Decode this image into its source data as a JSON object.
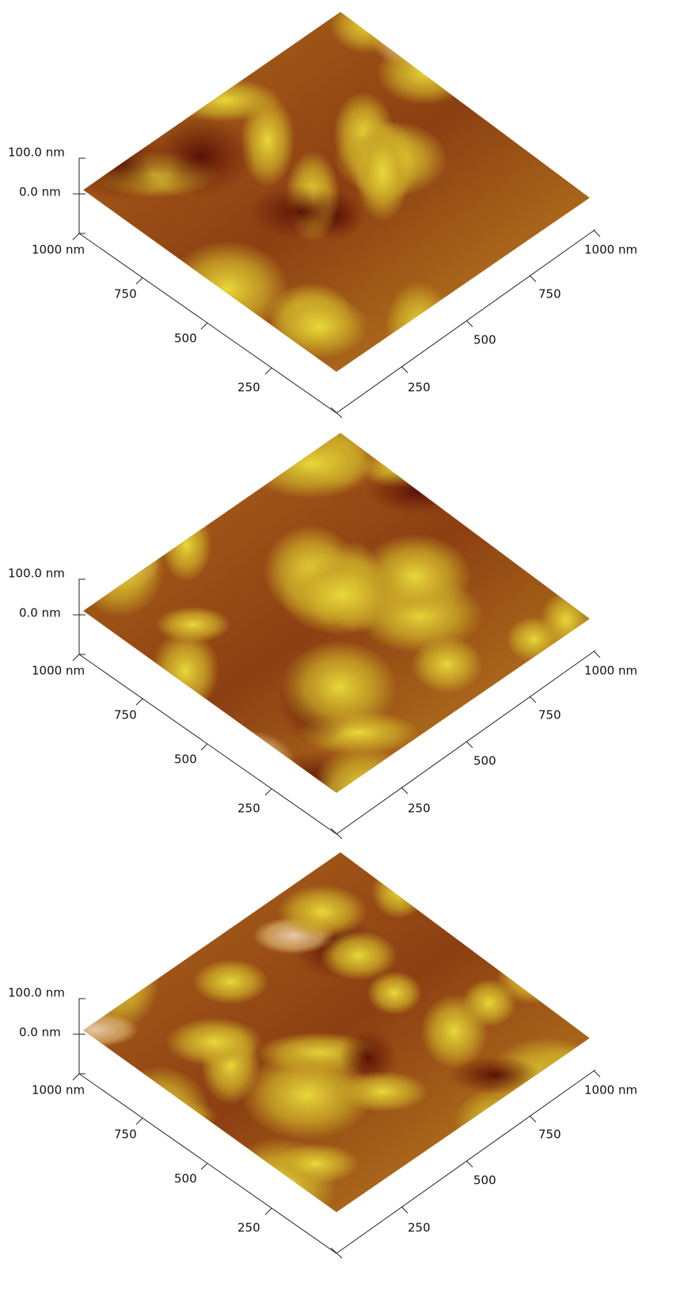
{
  "panels": [
    {
      "z_axis": {
        "top": "100.0 nm",
        "bottom": "0.0 nm"
      },
      "left_axis": [
        "1000 nm",
        "750",
        "500",
        "250"
      ],
      "right_axis": [
        "1000 nm",
        "750",
        "500",
        "250"
      ]
    },
    {
      "z_axis": {
        "top": "100.0 nm",
        "bottom": "0.0 nm"
      },
      "left_axis": [
        "1000 nm",
        "750",
        "500",
        "250"
      ],
      "right_axis": [
        "1000 nm",
        "750",
        "500",
        "250"
      ]
    },
    {
      "z_axis": {
        "top": "100.0 nm",
        "bottom": "0.0 nm"
      },
      "left_axis": [
        "1000 nm",
        "750",
        "500",
        "250"
      ],
      "right_axis": [
        "1000 nm",
        "750",
        "500",
        "250"
      ]
    }
  ]
}
